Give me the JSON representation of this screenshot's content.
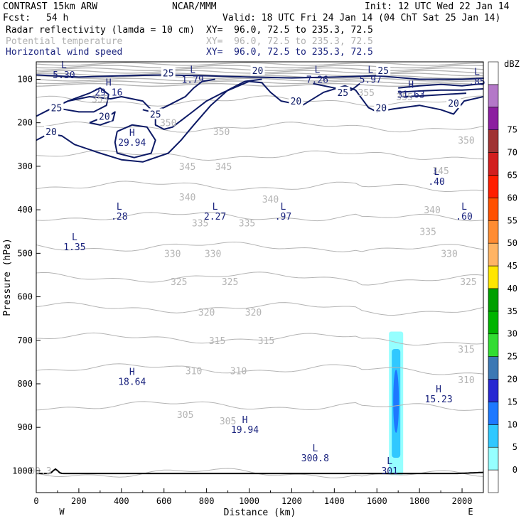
{
  "header": {
    "model": "CONTRAST 15km ARW",
    "center": "NCAR/MMM",
    "init": "Init: 12 UTC Wed 22 Jan 14",
    "fcst_label": "Fcst:",
    "fcst_value": "54 h",
    "valid": "Valid: 18 UTC Fri 24 Jan 14 (04 ChT Sat 25 Jan 14)",
    "fields": [
      {
        "name": "Radar reflectivity (lamda = 10 cm)",
        "xy": "XY=  96.0, 72.5 to 235.3, 72.5"
      },
      {
        "name": "Potential temperature",
        "xy": "XY=  96.0, 72.5 to 235.3, 72.5"
      },
      {
        "name": "Horizontal wind speed",
        "xy": "XY=  96.0, 72.5 to 235.3, 72.5"
      }
    ]
  },
  "colors": {
    "theta": "#b4b4b4",
    "wind": "#0d1a66",
    "extrema": "#1a237e"
  },
  "chart_data": {
    "type": "contour-cross-section",
    "xlabel": "Distance (km)",
    "ylabel": "Pressure (hPa)",
    "xlim": [
      0,
      2100
    ],
    "ylim": [
      1050,
      60
    ],
    "xticks": [
      0,
      200,
      400,
      600,
      800,
      1000,
      1200,
      1400,
      1600,
      1800,
      2000
    ],
    "yticks": [
      100,
      200,
      300,
      400,
      500,
      600,
      700,
      800,
      900,
      1000
    ],
    "x_end_labels": {
      "left": "W",
      "right": "E"
    },
    "colorbar": {
      "unit": "dBZ",
      "levels": [
        0,
        5,
        10,
        15,
        20,
        25,
        30,
        35,
        40,
        45,
        50,
        55,
        60,
        65,
        70,
        75
      ],
      "colors": [
        "#ffffff",
        "#96ffff",
        "#30c8ff",
        "#1e78ff",
        "#2828d2",
        "#3c78b4",
        "#32dc32",
        "#00b400",
        "#00a000",
        "#ffe600",
        "#ffb464",
        "#ff8c32",
        "#ff5000",
        "#ff1e00",
        "#d21e1e",
        "#a03232",
        "#8c1ea0",
        "#b478c8",
        "#ffffff"
      ]
    },
    "theta_contours": [
      {
        "value": 355,
        "labels": [
          {
            "x": 300,
            "p": 145
          },
          {
            "x": 1550,
            "p": 130
          },
          {
            "x": 1730,
            "p": 140
          }
        ]
      },
      {
        "value": 350,
        "labels": [
          {
            "x": 620,
            "p": 200
          },
          {
            "x": 870,
            "p": 220
          },
          {
            "x": 2020,
            "p": 240
          }
        ]
      },
      {
        "value": 345,
        "labels": [
          {
            "x": 710,
            "p": 300
          },
          {
            "x": 880,
            "p": 300
          },
          {
            "x": 1900,
            "p": 310
          }
        ]
      },
      {
        "value": 340,
        "labels": [
          {
            "x": 710,
            "p": 370
          },
          {
            "x": 1100,
            "p": 375
          },
          {
            "x": 1860,
            "p": 400
          }
        ]
      },
      {
        "value": 335,
        "labels": [
          {
            "x": 770,
            "p": 430
          },
          {
            "x": 990,
            "p": 430
          },
          {
            "x": 1840,
            "p": 450
          }
        ]
      },
      {
        "value": 330,
        "labels": [
          {
            "x": 640,
            "p": 500
          },
          {
            "x": 830,
            "p": 500
          },
          {
            "x": 1940,
            "p": 500
          }
        ]
      },
      {
        "value": 325,
        "labels": [
          {
            "x": 670,
            "p": 565
          },
          {
            "x": 910,
            "p": 565
          },
          {
            "x": 2030,
            "p": 565
          }
        ]
      },
      {
        "value": 320,
        "labels": [
          {
            "x": 800,
            "p": 635
          },
          {
            "x": 1020,
            "p": 635
          }
        ]
      },
      {
        "value": 315,
        "labels": [
          {
            "x": 850,
            "p": 700
          },
          {
            "x": 1080,
            "p": 700
          },
          {
            "x": 2020,
            "p": 720
          }
        ]
      },
      {
        "value": 310,
        "labels": [
          {
            "x": 740,
            "p": 770
          },
          {
            "x": 950,
            "p": 770
          },
          {
            "x": 2020,
            "p": 790
          }
        ]
      },
      {
        "value": 305,
        "labels": [
          {
            "x": 700,
            "p": 870
          },
          {
            "x": 900,
            "p": 885
          }
        ]
      }
    ],
    "wind_contours": [
      {
        "value": 25,
        "labels": [
          {
            "x": 95,
            "p": 165
          },
          {
            "x": 620,
            "p": 85
          },
          {
            "x": 1440,
            "p": 130
          },
          {
            "x": 1630,
            "p": 80
          }
        ]
      },
      {
        "value": 20,
        "labels": [
          {
            "x": 320,
            "p": 185
          },
          {
            "x": 70,
            "p": 220
          },
          {
            "x": 1040,
            "p": 80
          },
          {
            "x": 1220,
            "p": 150
          },
          {
            "x": 1620,
            "p": 165
          },
          {
            "x": 1960,
            "p": 155
          }
        ]
      },
      {
        "value": 25,
        "labels": [
          {
            "x": 560,
            "p": 180
          }
        ]
      }
    ],
    "extrema": [
      {
        "type": "L",
        "value": "5.30",
        "x": 130,
        "p": 75
      },
      {
        "type": "L",
        "value": "1.79",
        "x": 735,
        "p": 85
      },
      {
        "type": "L",
        "value": "7.26",
        "x": 1320,
        "p": 85
      },
      {
        "type": "L",
        "value": "5.97",
        "x": 1570,
        "p": 85
      },
      {
        "type": "L",
        "value": ".85",
        "x": 2070,
        "p": 90
      },
      {
        "type": "H",
        "value": "29.16",
        "x": 340,
        "p": 115
      },
      {
        "type": "H",
        "value": "31.63",
        "x": 1760,
        "p": 120
      },
      {
        "type": "H",
        "value": "29.94",
        "x": 450,
        "p": 230
      },
      {
        "type": "L",
        "value": ".40",
        "x": 1880,
        "p": 320
      },
      {
        "type": "L",
        "value": ".28",
        "x": 390,
        "p": 400
      },
      {
        "type": "L",
        "value": "2.27",
        "x": 840,
        "p": 400
      },
      {
        "type": "L",
        "value": ".97",
        "x": 1160,
        "p": 400
      },
      {
        "type": "L",
        "value": ".60",
        "x": 2010,
        "p": 400
      },
      {
        "type": "L",
        "value": "1.35",
        "x": 180,
        "p": 470
      },
      {
        "type": "H",
        "value": "18.64",
        "x": 450,
        "p": 780
      },
      {
        "type": "H",
        "value": "15.23",
        "x": 1890,
        "p": 820
      },
      {
        "type": "H",
        "value": "19.94",
        "x": 980,
        "p": 890
      },
      {
        "type": "L",
        "value": "300.8",
        "x": 1310,
        "p": 955
      },
      {
        "type": "L",
        "value": "301",
        "x": 1660,
        "p": 985
      },
      {
        "type": "",
        "value": "00.3",
        "x": 20,
        "p": 985
      }
    ],
    "reflectivity_cell": {
      "x_center": 1690,
      "p_top": 680,
      "p_bottom": 1010,
      "core_dbz": 15,
      "outer_dbz": 5,
      "mid_dbz": 10
    }
  }
}
